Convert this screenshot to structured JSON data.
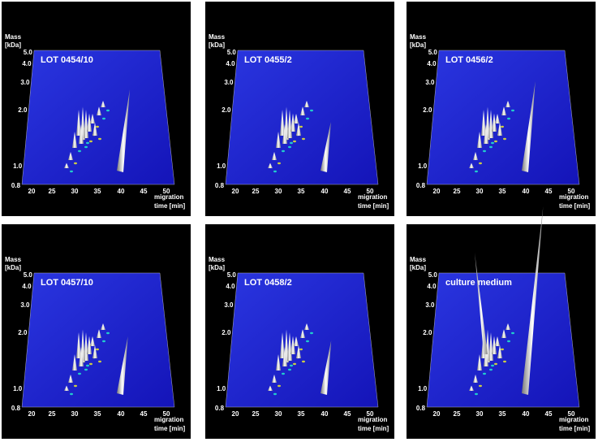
{
  "axis": {
    "y_title": "Mass",
    "y_unit": "[kDa]",
    "x_title": "migration",
    "x_unit": "time [min]",
    "yticks": [
      "5.0",
      "4.0",
      "3.0",
      "2.0",
      "1.0",
      "0.8"
    ],
    "xticks": [
      "20",
      "25",
      "30",
      "35",
      "40",
      "45",
      "50"
    ]
  },
  "panels": [
    {
      "label": "LOT 0454/10"
    },
    {
      "label": "LOT 0455/2"
    },
    {
      "label": "LOT 0456/2"
    },
    {
      "label": "LOT 0457/10"
    },
    {
      "label": "LOT 0458/2"
    },
    {
      "label": "culture medium"
    }
  ]
}
